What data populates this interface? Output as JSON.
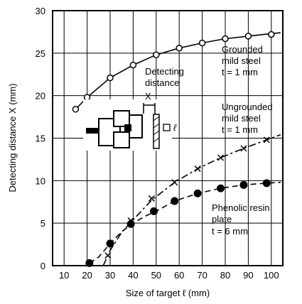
{
  "chart_data": {
    "type": "line",
    "xlabel": "Size of target ℓ (mm)",
    "ylabel": "Detecting distance X (mm)",
    "xlim": [
      5,
      105
    ],
    "ylim": [
      0,
      30
    ],
    "x_ticks": [
      "10",
      "20",
      "30",
      "40",
      "50",
      "60",
      "70",
      "80",
      "90",
      "100"
    ],
    "y_ticks": [
      "0",
      "5",
      "10",
      "15",
      "20",
      "25",
      "30"
    ],
    "grid": true,
    "series": [
      {
        "label_lines": [
          "Grounded",
          "mild steel",
          "t = 1 mm"
        ],
        "marker": "open-circle",
        "line_style": "solid",
        "points": [
          [
            15,
            18.4
          ],
          [
            20,
            19.8
          ],
          [
            30,
            22.1
          ],
          [
            40,
            23.6
          ],
          [
            50,
            24.8
          ],
          [
            60,
            25.6
          ],
          [
            70,
            26.2
          ],
          [
            80,
            26.7
          ],
          [
            90,
            27.0
          ],
          [
            100,
            27.2
          ]
        ],
        "curve": [
          [
            15,
            18.4
          ],
          [
            20,
            19.8
          ],
          [
            30,
            22.1
          ],
          [
            40,
            23.6
          ],
          [
            50,
            24.8
          ],
          [
            60,
            25.6
          ],
          [
            70,
            26.2
          ],
          [
            80,
            26.7
          ],
          [
            90,
            27.0
          ],
          [
            100,
            27.3
          ],
          [
            104,
            27.4
          ]
        ]
      },
      {
        "label_lines": [
          "Ungrounded",
          "mild steel",
          "t = 1 mm"
        ],
        "marker": "x",
        "line_style": "dash-dot",
        "points": [
          [
            29,
            1.2
          ],
          [
            39,
            5.3
          ],
          [
            48,
            7.9
          ],
          [
            58,
            9.8
          ],
          [
            68,
            11.4
          ],
          [
            78,
            12.7
          ],
          [
            88,
            13.8
          ],
          [
            98,
            14.8
          ]
        ],
        "curve": [
          [
            27,
            0
          ],
          [
            30,
            1.8
          ],
          [
            35,
            3.9
          ],
          [
            40,
            5.4
          ],
          [
            48,
            7.7
          ],
          [
            58,
            9.8
          ],
          [
            68,
            11.4
          ],
          [
            78,
            12.7
          ],
          [
            88,
            13.8
          ],
          [
            98,
            14.8
          ],
          [
            104,
            15.4
          ]
        ]
      },
      {
        "label_lines": [
          "Phenolic resin",
          "plate",
          "t = 6 mm"
        ],
        "marker": "filled-circle",
        "line_style": "dashed",
        "points": [
          [
            21,
            0.3
          ],
          [
            30,
            2.6
          ],
          [
            39,
            4.9
          ],
          [
            49,
            6.4
          ],
          [
            58,
            7.6
          ],
          [
            68,
            8.5
          ],
          [
            78,
            9.1
          ],
          [
            88,
            9.5
          ],
          [
            98,
            9.7
          ]
        ],
        "curve": [
          [
            21,
            0.3
          ],
          [
            25,
            1.0
          ],
          [
            30,
            2.6
          ],
          [
            35,
            4.0
          ],
          [
            40,
            5.0
          ],
          [
            45,
            5.8
          ],
          [
            50,
            6.4
          ],
          [
            58,
            7.6
          ],
          [
            68,
            8.5
          ],
          [
            78,
            9.1
          ],
          [
            88,
            9.5
          ],
          [
            98,
            9.7
          ],
          [
            104,
            9.8
          ]
        ]
      }
    ],
    "inset": {
      "label_lines": [
        "Detecting",
        "distance"
      ],
      "x_label": "X",
      "size_label": "ℓ"
    }
  },
  "colors": {
    "ink": "#000000",
    "background": "#ffffff"
  }
}
